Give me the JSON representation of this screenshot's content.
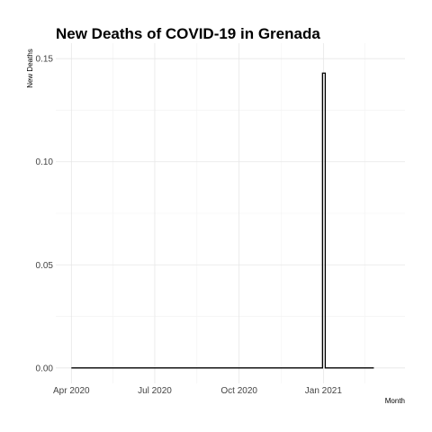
{
  "chart_data": {
    "type": "line",
    "title": "New Deaths of COVID-19 in Grenada",
    "xlabel": "Month",
    "ylabel": "New Deaths",
    "x_ticks": [
      {
        "label": "Apr 2020",
        "date": "2020-04-01"
      },
      {
        "label": "Jul 2020",
        "date": "2020-07-01"
      },
      {
        "label": "Oct 2020",
        "date": "2020-10-01"
      },
      {
        "label": "Jan 2021",
        "date": "2021-01-01"
      }
    ],
    "y_ticks": [
      {
        "label": "0.00",
        "value": 0
      },
      {
        "label": "0.05",
        "value": 0.05
      },
      {
        "label": "0.10",
        "value": 0.1
      },
      {
        "label": "0.15",
        "value": 0.15
      }
    ],
    "xlim": [
      "2020-03-15",
      "2021-03-31"
    ],
    "ylim": [
      -0.0075,
      0.1575
    ],
    "grid": true,
    "legend": "none",
    "series": [
      {
        "style": "step",
        "color": "#000000",
        "points": [
          {
            "x": "2020-04-01",
            "y": 0
          },
          {
            "x": "2020-12-31",
            "y": 0
          },
          {
            "x": "2020-12-31",
            "y": 0.143
          },
          {
            "x": "2021-01-03",
            "y": 0.143
          },
          {
            "x": "2021-01-03",
            "y": 0
          },
          {
            "x": "2021-02-25",
            "y": 0
          }
        ]
      }
    ]
  }
}
